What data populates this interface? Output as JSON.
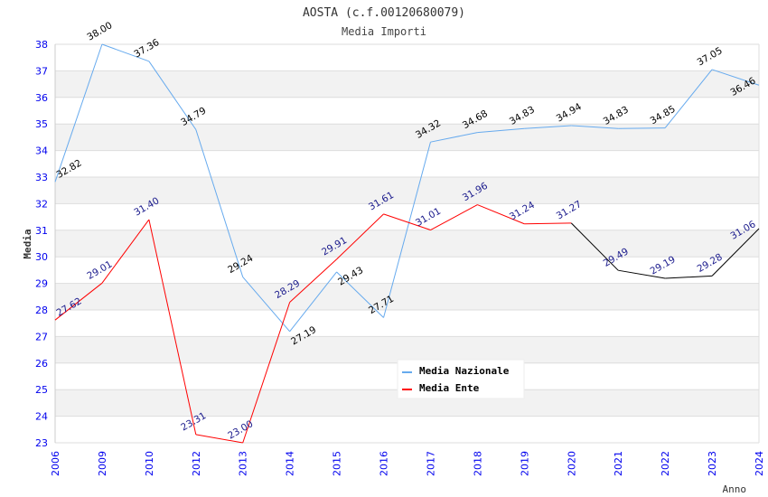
{
  "chart_data": {
    "type": "line",
    "title": "AOSTA (c.f.00120680079)",
    "subtitle": "Media Importi",
    "xlabel": "Anno",
    "ylabel": "Media",
    "ylim": [
      23,
      38
    ],
    "yticks": [
      "23",
      "24",
      "25",
      "26",
      "27",
      "28",
      "29",
      "30",
      "31",
      "32",
      "33",
      "34",
      "35",
      "36",
      "37",
      "38"
    ],
    "categories": [
      "2006",
      "2009",
      "2010",
      "2012",
      "2013",
      "2014",
      "2015",
      "2016",
      "2017",
      "2018",
      "2019",
      "2020",
      "2021",
      "2022",
      "2023",
      "2024"
    ],
    "grid": true,
    "legend_position": "top-right",
    "series": [
      {
        "name": "Media Nazionale",
        "color": "#66aaee",
        "label_color": "#000000",
        "values": [
          32.82,
          38.0,
          37.36,
          34.79,
          29.24,
          27.19,
          29.43,
          27.71,
          34.32,
          34.68,
          34.83,
          34.94,
          34.83,
          34.85,
          37.05,
          36.46
        ],
        "labels": [
          "32.82",
          "38.00",
          "37.36",
          "34.79",
          "29.24",
          "27.19",
          "29.43",
          "27.71",
          "34.32",
          "34.68",
          "34.83",
          "34.94",
          "34.83",
          "34.85",
          "37.05",
          "36.46"
        ]
      },
      {
        "name": "Media Ente",
        "color": "#ff0000",
        "tail_color": "#000000",
        "label_color": "#1a1a8c",
        "values": [
          27.62,
          29.01,
          31.4,
          23.31,
          23.0,
          28.29,
          29.91,
          31.61,
          31.01,
          31.96,
          31.24,
          31.27,
          29.49,
          29.19,
          29.28,
          31.06
        ],
        "labels": [
          "27.62",
          "29.01",
          "31.40",
          "23.31",
          "23.00",
          "28.29",
          "29.91",
          "31.61",
          "31.01",
          "31.96",
          "31.24",
          "31.27",
          "29.49",
          "29.19",
          "29.28",
          "31.06"
        ]
      }
    ]
  }
}
